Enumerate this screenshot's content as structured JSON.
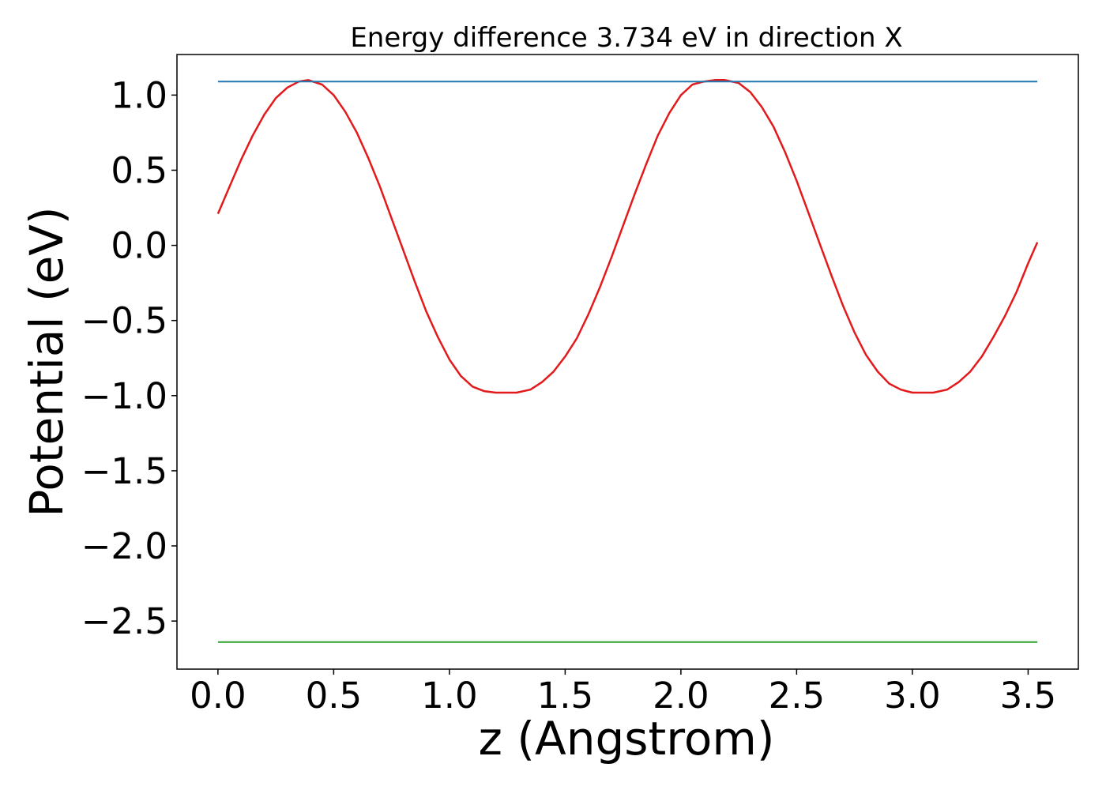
{
  "chart_data": {
    "type": "line",
    "title": "Energy difference 3.734 eV in direction X",
    "xlabel": "z (Angstrom)",
    "ylabel": "Potential (eV)",
    "xlim": [
      -0.177,
      3.717
    ],
    "ylim": [
      -2.82,
      1.27
    ],
    "xticks": [
      0.0,
      0.5,
      1.0,
      1.5,
      2.0,
      2.5,
      3.0,
      3.5
    ],
    "xtick_labels": [
      "0.0",
      "0.5",
      "1.0",
      "1.5",
      "2.0",
      "2.5",
      "3.0",
      "3.5"
    ],
    "yticks": [
      1.0,
      0.5,
      0.0,
      -0.5,
      -1.0,
      -1.5,
      -2.0,
      -2.5
    ],
    "ytick_labels": [
      "1.0",
      "0.5",
      "0.0",
      "−0.5",
      "−1.0",
      "−1.5",
      "−2.0",
      "−2.5"
    ],
    "grid": false,
    "series": [
      {
        "color": "#e31a1c",
        "x": [
          0.0,
          0.05,
          0.1,
          0.15,
          0.2,
          0.25,
          0.3,
          0.35,
          0.39,
          0.45,
          0.5,
          0.55,
          0.6,
          0.65,
          0.7,
          0.75,
          0.8,
          0.85,
          0.9,
          0.95,
          1.0,
          1.05,
          1.1,
          1.15,
          1.2,
          1.25,
          1.29,
          1.35,
          1.4,
          1.45,
          1.5,
          1.55,
          1.6,
          1.65,
          1.7,
          1.75,
          1.8,
          1.85,
          1.9,
          1.95,
          2.0,
          2.05,
          2.1,
          2.15,
          2.19,
          2.25,
          2.3,
          2.35,
          2.4,
          2.45,
          2.5,
          2.55,
          2.6,
          2.65,
          2.7,
          2.75,
          2.8,
          2.85,
          2.9,
          2.95,
          3.0,
          3.05,
          3.09,
          3.15,
          3.2,
          3.25,
          3.3,
          3.35,
          3.4,
          3.45,
          3.5,
          3.54
        ],
        "y": [
          0.21,
          0.39,
          0.57,
          0.73,
          0.87,
          0.98,
          1.05,
          1.09,
          1.1,
          1.07,
          1.0,
          0.89,
          0.75,
          0.58,
          0.39,
          0.18,
          -0.03,
          -0.24,
          -0.44,
          -0.61,
          -0.76,
          -0.87,
          -0.94,
          -0.97,
          -0.98,
          -0.98,
          -0.98,
          -0.96,
          -0.91,
          -0.84,
          -0.74,
          -0.62,
          -0.46,
          -0.28,
          -0.08,
          0.13,
          0.34,
          0.54,
          0.73,
          0.88,
          1.0,
          1.07,
          1.09,
          1.1,
          1.1,
          1.08,
          1.02,
          0.92,
          0.79,
          0.62,
          0.43,
          0.22,
          0.01,
          -0.2,
          -0.4,
          -0.58,
          -0.73,
          -0.84,
          -0.92,
          -0.96,
          -0.98,
          -0.98,
          -0.98,
          -0.96,
          -0.91,
          -0.84,
          -0.74,
          -0.61,
          -0.47,
          -0.31,
          -0.12,
          0.02
        ]
      },
      {
        "color": "#1f77b4",
        "x": [
          0.0,
          3.54
        ],
        "y": [
          1.09,
          1.09
        ]
      },
      {
        "color": "#2ca02c",
        "x": [
          0.0,
          3.54
        ],
        "y": [
          -2.64,
          -2.64
        ]
      }
    ]
  }
}
